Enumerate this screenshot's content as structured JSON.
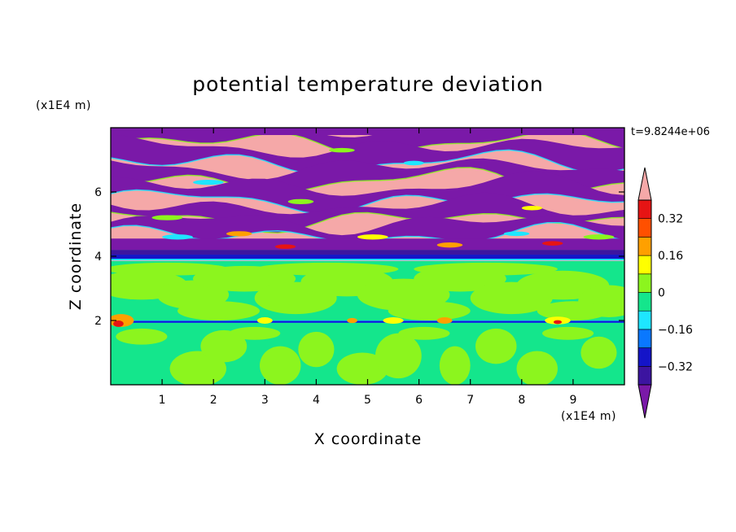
{
  "chart_data": {
    "type": "heatmap",
    "title": "potential temperature deviation",
    "xlabel": "X coordinate",
    "ylabel": "Z coordinate",
    "x_unit": "(x1E4 m)",
    "z_unit": "(x1E4 m)",
    "time_label": "t=9.8244e+06",
    "xlim": [
      0,
      10
    ],
    "ylim": [
      0,
      8
    ],
    "x_ticks": [
      1,
      2,
      3,
      4,
      5,
      6,
      7,
      8,
      9
    ],
    "y_ticks": [
      2,
      4,
      6
    ],
    "colorbar": {
      "levels": [
        -0.4,
        -0.32,
        -0.24,
        -0.16,
        -0.08,
        0,
        0.08,
        0.16,
        0.24,
        0.32,
        0.4
      ],
      "labels": [
        "0.32",
        "0.16",
        "0",
        "−0.16",
        "−0.32"
      ],
      "label_values": [
        0.32,
        0.16,
        0,
        -0.16,
        -0.32
      ],
      "colors": [
        "#7a19a8",
        "#3c14a0",
        "#1414c8",
        "#0a78ff",
        "#1ee6ff",
        "#14e68c",
        "#8cf51e",
        "#ffff00",
        "#ffa000",
        "#ff5000",
        "#e61414",
        "#f5a8a8"
      ],
      "extend": "both"
    },
    "regions": [
      {
        "z_range": [
          0,
          1.9
        ],
        "pattern": "mixed -0.08 to 0.08 (green / light green plumes)"
      },
      {
        "z_range": [
          1.9,
          2.0
        ],
        "pattern": "thin interface band, extremes -0.32 to 0.4"
      },
      {
        "z_range": [
          2.0,
          3.85
        ],
        "pattern": "mostly 0 to 0.08 with patches -0.08 to 0"
      },
      {
        "z_range": [
          3.85,
          4.5
        ],
        "pattern": "strong negative layers < -0.32"
      },
      {
        "z_range": [
          4.5,
          8.0
        ],
        "pattern": "alternating layers: > 0.4 (pink) and < -0.4 (purple)"
      }
    ]
  }
}
